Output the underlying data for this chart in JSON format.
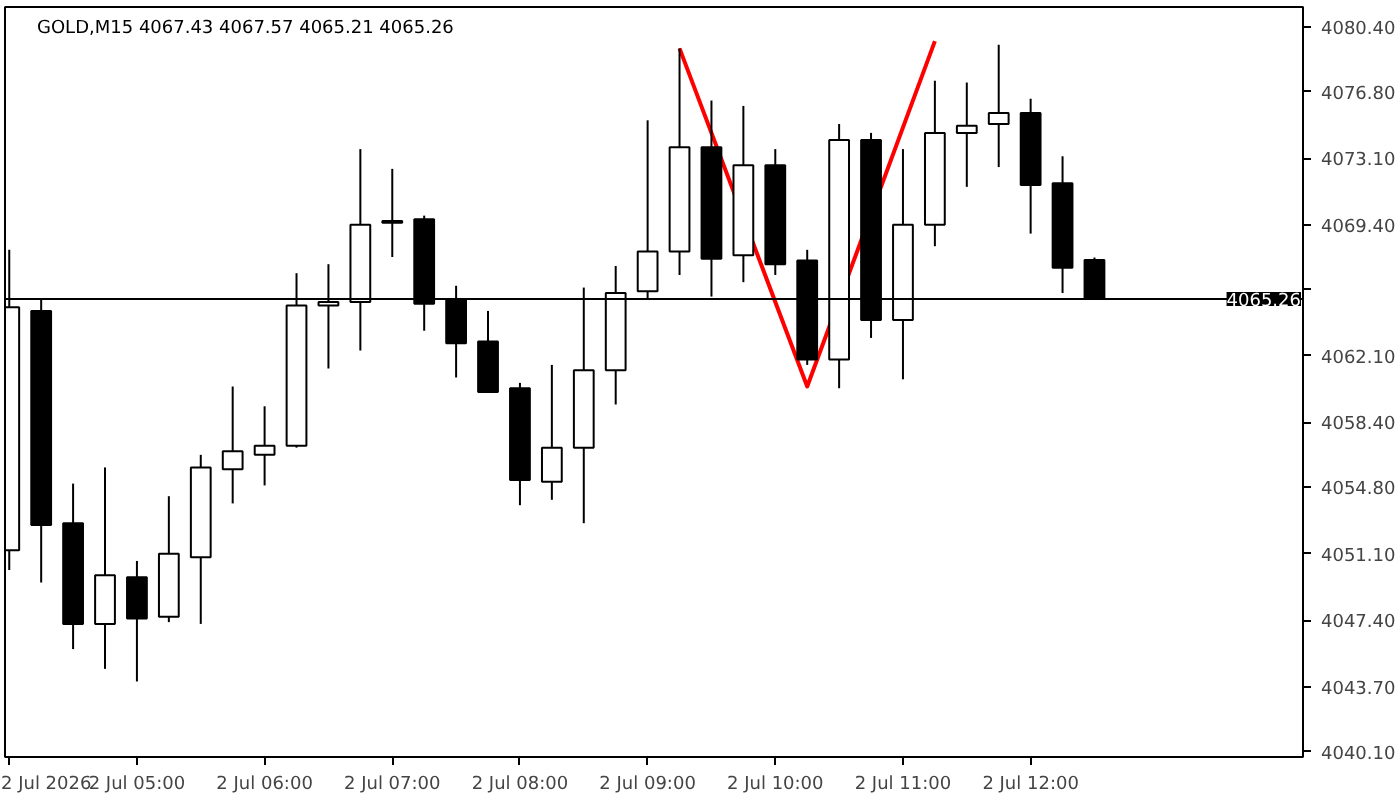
{
  "chart_data": {
    "type": "candlestick",
    "title": "GOLD,M15  4067.43 4067.57 4065.21 4065.26",
    "x": [
      "2026-07-02T04:00",
      "2026-07-02T04:15",
      "2026-07-02T04:30",
      "2026-07-02T04:45",
      "2026-07-02T05:00",
      "2026-07-02T05:15",
      "2026-07-02T05:30",
      "2026-07-02T05:45",
      "2026-07-02T06:00",
      "2026-07-02T06:15",
      "2026-07-02T06:30",
      "2026-07-02T06:45",
      "2026-07-02T07:00",
      "2026-07-02T07:15",
      "2026-07-02T07:30",
      "2026-07-02T07:45",
      "2026-07-02T08:00",
      "2026-07-02T08:15",
      "2026-07-02T08:30",
      "2026-07-02T08:45",
      "2026-07-02T09:00",
      "2026-07-02T09:15",
      "2026-07-02T09:30",
      "2026-07-02T09:45",
      "2026-07-02T10:00",
      "2026-07-02T10:15",
      "2026-07-02T10:30",
      "2026-07-02T10:45",
      "2026-07-02T11:00",
      "2026-07-02T11:15",
      "2026-07-02T11:30",
      "2026-07-02T11:45",
      "2026-07-02T12:00",
      "2026-07-02T12:15",
      "2026-07-02T12:30"
    ],
    "ohlc": [
      [
        4051.3,
        4068.0,
        4050.2,
        4064.8
      ],
      [
        4064.6,
        4065.3,
        4049.5,
        4052.7
      ],
      [
        4052.8,
        4055.0,
        4045.8,
        4047.2
      ],
      [
        4047.2,
        4055.9,
        4044.7,
        4049.9
      ],
      [
        4049.8,
        4050.7,
        4044.0,
        4047.5
      ],
      [
        4047.6,
        4054.3,
        4047.3,
        4051.1
      ],
      [
        4050.9,
        4056.6,
        4047.2,
        4055.9
      ],
      [
        4055.8,
        4060.4,
        4053.9,
        4056.8
      ],
      [
        4056.6,
        4059.3,
        4054.9,
        4057.1
      ],
      [
        4057.1,
        4066.7,
        4057.0,
        4064.9
      ],
      [
        4064.9,
        4067.2,
        4061.4,
        4065.1
      ],
      [
        4065.1,
        4073.6,
        4062.4,
        4069.4
      ],
      [
        4069.6,
        4072.5,
        4067.6,
        4069.5
      ],
      [
        4069.7,
        4069.9,
        4063.5,
        4065.0
      ],
      [
        4065.2,
        4066.0,
        4060.9,
        4062.8
      ],
      [
        4062.9,
        4064.6,
        4060.1,
        4060.1
      ],
      [
        4060.3,
        4060.6,
        4053.8,
        4055.2
      ],
      [
        4055.1,
        4061.6,
        4054.1,
        4057.0
      ],
      [
        4057.0,
        4065.9,
        4052.8,
        4061.3
      ],
      [
        4061.3,
        4067.1,
        4059.4,
        4065.6
      ],
      [
        4065.7,
        4075.2,
        4065.3,
        4067.9
      ],
      [
        4067.9,
        4079.2,
        4066.6,
        4073.7
      ],
      [
        4073.7,
        4076.3,
        4065.4,
        4067.5
      ],
      [
        4067.7,
        4076.0,
        4066.2,
        4072.7
      ],
      [
        4072.7,
        4073.6,
        4066.6,
        4067.2
      ],
      [
        4067.4,
        4068.0,
        4061.6,
        4061.9
      ],
      [
        4061.9,
        4075.0,
        4060.3,
        4074.1
      ],
      [
        4074.1,
        4074.5,
        4063.1,
        4064.1
      ],
      [
        4064.1,
        4073.6,
        4060.8,
        4069.4
      ],
      [
        4069.4,
        4077.4,
        4068.2,
        4074.5
      ],
      [
        4074.5,
        4077.3,
        4071.5,
        4074.9
      ],
      [
        4075.0,
        4079.4,
        4072.6,
        4075.6
      ],
      [
        4075.6,
        4076.4,
        4068.9,
        4071.6
      ],
      [
        4071.7,
        4073.2,
        4065.6,
        4067.0
      ],
      [
        4067.43,
        4067.57,
        4065.21,
        4065.26
      ]
    ],
    "series": [
      {
        "type": "line",
        "color": "#ff0000",
        "x": [
          "2026-07-02T09:15",
          "2026-07-02T10:15",
          "2026-07-02T11:15"
        ],
        "values": [
          4079.2,
          4060.4,
          4079.6
        ]
      }
    ],
    "ref_lines": [
      {
        "axis": "y",
        "value": 4065.26,
        "label": "4065.26",
        "color": "#000000"
      }
    ],
    "xlim": [
      "2026-07-02T03:58",
      "2026-07-02T14:08"
    ],
    "xticks": [
      {
        "value": "2026-07-02T04:00",
        "label": "2 Jul 2026"
      },
      {
        "value": "2026-07-02T05:00",
        "label": "2 Jul 05:00"
      },
      {
        "value": "2026-07-02T06:00",
        "label": "2 Jul 06:00"
      },
      {
        "value": "2026-07-02T07:00",
        "label": "2 Jul 07:00"
      },
      {
        "value": "2026-07-02T08:00",
        "label": "2 Jul 08:00"
      },
      {
        "value": "2026-07-02T09:00",
        "label": "2 Jul 09:00"
      },
      {
        "value": "2026-07-02T10:00",
        "label": "2 Jul 10:00"
      },
      {
        "value": "2026-07-02T11:00",
        "label": "2 Jul 11:00"
      },
      {
        "value": "2026-07-02T12:00",
        "label": "2 Jul 12:00"
      }
    ],
    "ylim": [
      4039.8,
      4081.5
    ],
    "yticks": [
      {
        "value": 4040.1,
        "label": "4040.10"
      },
      {
        "value": 4043.7,
        "label": "4043.70"
      },
      {
        "value": 4047.4,
        "label": "4047.40"
      },
      {
        "value": 4051.1,
        "label": "4051.10"
      },
      {
        "value": 4054.8,
        "label": "4054.80"
      },
      {
        "value": 4058.4,
        "label": "4058.40"
      },
      {
        "value": 4062.1,
        "label": "4062.10"
      },
      {
        "value": 4065.8,
        "label": null
      },
      {
        "value": 4069.4,
        "label": "4069.40"
      },
      {
        "value": 4073.1,
        "label": "4073.10"
      },
      {
        "value": 4076.8,
        "label": "4076.80"
      },
      {
        "value": 4080.4,
        "label": "4080.40"
      }
    ]
  }
}
